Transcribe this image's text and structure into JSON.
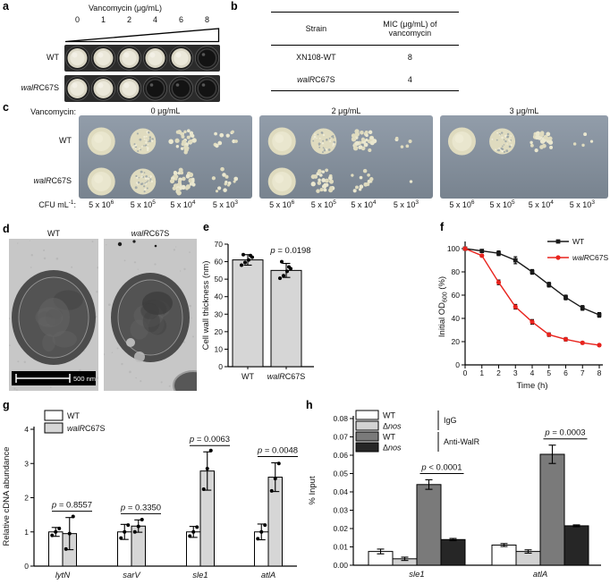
{
  "figure": {
    "background": "#ffffff",
    "accent_red": "#e8231d"
  },
  "panels": {
    "a": {
      "tag": "a",
      "title": "Vancomycin (μg/mL)",
      "concentrations": [
        "0",
        "1",
        "2",
        "4",
        "6",
        "8"
      ],
      "rows": [
        {
          "strain": {
            "italic": "",
            "roman": "WT"
          },
          "wells": [
            "growth",
            "growth",
            "growth",
            "growth",
            "growth",
            "clear"
          ]
        },
        {
          "strain": {
            "italic": "walR",
            "roman": "C67S"
          },
          "wells": [
            "growth",
            "growth",
            "growth",
            "clear",
            "clear",
            "clear"
          ]
        }
      ]
    },
    "b": {
      "tag": "b",
      "col1": "Strain",
      "col2_line1": "MIC (μg/mL) of",
      "col2_line2": "vancomycin",
      "rows": [
        {
          "strain": {
            "italic": "",
            "roman": "XN108-WT"
          },
          "mic": "8"
        },
        {
          "strain": {
            "italic": "walR",
            "roman": "C67S"
          },
          "mic": "4"
        }
      ]
    },
    "c": {
      "tag": "c",
      "assay_label": "Vancomycin:",
      "strains": [
        {
          "italic": "",
          "roman": "WT"
        },
        {
          "italic": "walR",
          "roman": "C67S"
        }
      ],
      "cfu_label": {
        "base": "CFU mL",
        "sup": "-1",
        "suffix": ":"
      },
      "cfu_values": [
        {
          "base": "5 x 10",
          "sup": "6"
        },
        {
          "base": "5 x 10",
          "sup": "5"
        },
        {
          "base": "5 x 10",
          "sup": "4"
        },
        {
          "base": "5 x 10",
          "sup": "3"
        }
      ],
      "plates": [
        {
          "conc": "0 μg/mL",
          "rows": [
            [
              {
                "t": "confluent"
              },
              {
                "t": "dense"
              },
              {
                "t": "colonies",
                "n": 28
              },
              {
                "t": "sparse",
                "n": 11
              }
            ],
            [
              {
                "t": "confluent"
              },
              {
                "t": "dense"
              },
              {
                "t": "colonies",
                "n": 42
              },
              {
                "t": "sparse",
                "n": 13
              }
            ]
          ]
        },
        {
          "conc": "2 μg/mL",
          "rows": [
            [
              {
                "t": "confluent"
              },
              {
                "t": "dense"
              },
              {
                "t": "colonies",
                "n": 30
              },
              {
                "t": "few",
                "n": 6
              }
            ],
            [
              {
                "t": "confluent"
              },
              {
                "t": "colonies",
                "n": 26
              },
              {
                "t": "sparse",
                "n": 14
              },
              {
                "t": "few",
                "n": 1
              }
            ]
          ]
        },
        {
          "conc": "3 μg/mL",
          "rows": [
            [
              {
                "t": "confluent"
              },
              {
                "t": "dense"
              },
              {
                "t": "colonies",
                "n": 24
              },
              {
                "t": "few",
                "n": 4
              }
            ],
            [
              {
                "t": "none"
              },
              {
                "t": "none"
              },
              {
                "t": "none"
              },
              {
                "t": "none"
              }
            ]
          ]
        }
      ]
    },
    "d": {
      "tag": "d",
      "labels": [
        {
          "italic": "",
          "roman": "WT"
        },
        {
          "italic": "walR",
          "roman": "C67S"
        }
      ],
      "scalebar": "500 nm"
    },
    "e": {
      "tag": "e"
    },
    "f": {
      "tag": "f"
    },
    "g": {
      "tag": "g"
    },
    "h": {
      "tag": "h"
    }
  },
  "chart_data": [
    {
      "id": "e",
      "type": "bar",
      "ylabel": "Cell wall thickness (nm)",
      "ylim": [
        0,
        70
      ],
      "yticks": [
        0,
        10,
        20,
        30,
        40,
        50,
        60,
        70
      ],
      "categories": [
        {
          "italic": "",
          "roman": "WT"
        },
        {
          "italic": "walR",
          "roman": "C67S"
        }
      ],
      "values": [
        61,
        55
      ],
      "errors": [
        3,
        4
      ],
      "points": [
        [
          58,
          59.5,
          61,
          62.5,
          64,
          63.5
        ],
        [
          50.5,
          52,
          54.5,
          56,
          60,
          57
        ]
      ],
      "bar_fill": "#d6d6d6",
      "annotation": {
        "prefix": "p",
        "text": " = 0.0198"
      }
    },
    {
      "id": "f",
      "type": "line",
      "xlabel": "Time (h)",
      "x": [
        0,
        1,
        2,
        3,
        4,
        5,
        6,
        7,
        8
      ],
      "ylabel": {
        "pre": "Initial OD",
        "sub": "600",
        "post": " (%)"
      },
      "ylim": [
        0,
        100
      ],
      "yticks": [
        0,
        20,
        40,
        60,
        80,
        100
      ],
      "legend_pos": "top-right",
      "series": [
        {
          "name": {
            "italic": "",
            "roman": "WT"
          },
          "color": "#1a1a1a",
          "marker": "square",
          "values": [
            100,
            98,
            96,
            90,
            80,
            69,
            58,
            49,
            43
          ],
          "errors": [
            1,
            1,
            2,
            3,
            2,
            2,
            2,
            2,
            2
          ]
        },
        {
          "name": {
            "italic": "walR",
            "roman": "C67S"
          },
          "color": "#e8231d",
          "marker": "circle",
          "values": [
            100,
            94,
            71,
            50,
            37,
            26,
            22,
            19,
            17
          ],
          "errors": [
            1,
            1,
            2,
            2,
            2,
            1.5,
            1.5,
            1,
            1
          ]
        }
      ]
    },
    {
      "id": "g",
      "type": "grouped-bar",
      "ylabel": "Relative cDNA abundance",
      "ylim": [
        0,
        4
      ],
      "yticks": [
        0,
        1,
        2,
        3,
        4
      ],
      "categories": [
        {
          "italic": "lytN",
          "roman": ""
        },
        {
          "italic": "sarV",
          "roman": ""
        },
        {
          "italic": "sle1",
          "roman": ""
        },
        {
          "italic": "atlA",
          "roman": ""
        }
      ],
      "series": [
        {
          "name": {
            "italic": "",
            "roman": "WT"
          },
          "fill": "#ffffff",
          "values": [
            1.0,
            1.0,
            1.0,
            1.0
          ],
          "errors": [
            0.13,
            0.22,
            0.16,
            0.23
          ],
          "points": [
            [
              0.9,
              1.0,
              1.1
            ],
            [
              0.82,
              1.0,
              1.2
            ],
            [
              0.88,
              1.0,
              1.14
            ],
            [
              0.8,
              1.0,
              1.2
            ]
          ]
        },
        {
          "name": {
            "italic": "walR",
            "roman": "C67S"
          },
          "fill": "#d6d6d6",
          "values": [
            0.95,
            1.17,
            2.78,
            2.6
          ],
          "errors": [
            0.47,
            0.18,
            0.56,
            0.42
          ],
          "points": [
            [
              0.5,
              0.95,
              1.45
            ],
            [
              1.0,
              1.16,
              1.36
            ],
            [
              2.25,
              2.85,
              3.38
            ],
            [
              2.2,
              2.56,
              3.0
            ]
          ]
        }
      ],
      "pvalues": [
        {
          "prefix": "p",
          "text": " = 0.8557"
        },
        {
          "prefix": "p",
          "text": " = 0.3350"
        },
        {
          "prefix": "p",
          "text": " = 0.0063"
        },
        {
          "prefix": "p",
          "text": " = 0.0048"
        }
      ]
    },
    {
      "id": "h",
      "type": "grouped-bar",
      "ylabel": "% Input",
      "ylim": [
        0,
        0.08
      ],
      "yticks": [
        "0.00",
        "0.01",
        "0.02",
        "0.03",
        "0.04",
        "0.05",
        "0.06",
        "0.07",
        "0.08"
      ],
      "categories": [
        {
          "italic": "sle1",
          "roman": ""
        },
        {
          "italic": "atlA",
          "roman": ""
        }
      ],
      "series": [
        {
          "name": {
            "prefix": "",
            "italic": "",
            "roman": "WT"
          },
          "group": "IgG",
          "fill": "#ffffff",
          "values": [
            0.0075,
            0.011
          ],
          "errors": [
            0.0013,
            0.0008
          ]
        },
        {
          "name": {
            "prefix": "Δ",
            "italic": "nos",
            "roman": ""
          },
          "group": "IgG",
          "fill": "#d2d2d2",
          "values": [
            0.0035,
            0.0075
          ],
          "errors": [
            0.0009,
            0.0009
          ]
        },
        {
          "name": {
            "prefix": "",
            "italic": "",
            "roman": "WT"
          },
          "group": "Anti-WalR",
          "fill": "#7a7a7a",
          "values": [
            0.044,
            0.0605
          ],
          "errors": [
            0.0026,
            0.005
          ]
        },
        {
          "name": {
            "prefix": "Δ",
            "italic": "nos",
            "roman": ""
          },
          "group": "Anti-WalR",
          "fill": "#262626",
          "values": [
            0.014,
            0.0215
          ],
          "errors": [
            0.0006,
            0.0005
          ]
        }
      ],
      "legend_groups": [
        "IgG",
        "Anti-WalR"
      ],
      "pvalues": [
        {
          "prefix": "p",
          "text": " < 0.0001"
        },
        {
          "prefix": "p",
          "text": " = 0.0003"
        }
      ]
    }
  ]
}
